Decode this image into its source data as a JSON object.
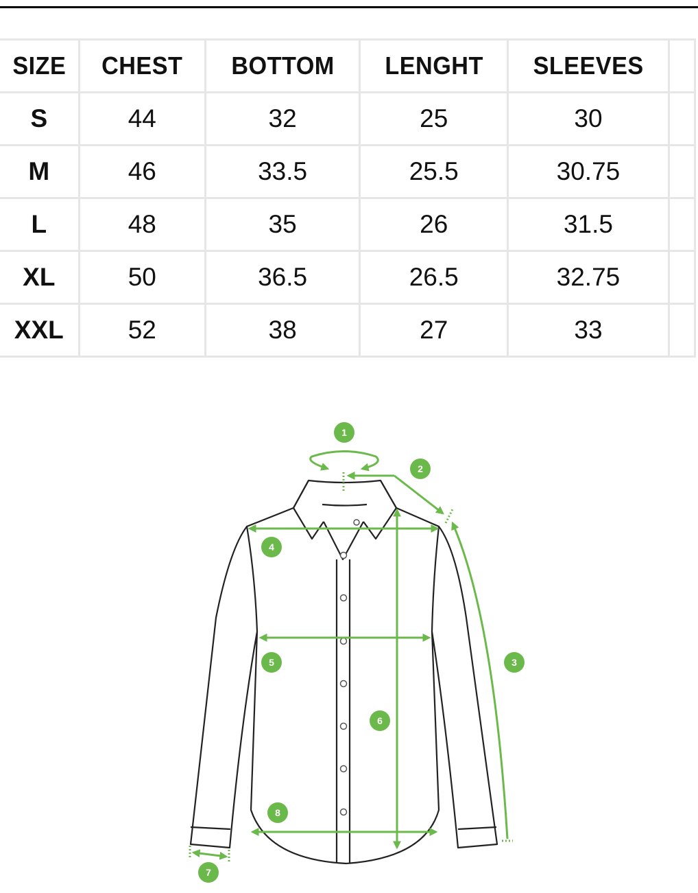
{
  "table": {
    "headers": [
      "SIZE",
      "CHEST",
      "BOTTOM",
      "LENGHT",
      "SLEEVES",
      ""
    ],
    "rows": [
      [
        "S",
        "44",
        "32",
        "25",
        "30",
        ""
      ],
      [
        "M",
        "46",
        "33.5",
        "25.5",
        "30.75",
        ""
      ],
      [
        "L",
        "48",
        "35",
        "26",
        "31.5",
        ""
      ],
      [
        "XL",
        "50",
        "36.5",
        "26.5",
        "32.75",
        ""
      ],
      [
        "XXL",
        "52",
        "38",
        "27",
        "33",
        ""
      ]
    ]
  },
  "diagram": {
    "accent_color": "#6cb94b",
    "markers": [
      "1",
      "2",
      "3",
      "4",
      "5",
      "6",
      "7",
      "8"
    ]
  }
}
